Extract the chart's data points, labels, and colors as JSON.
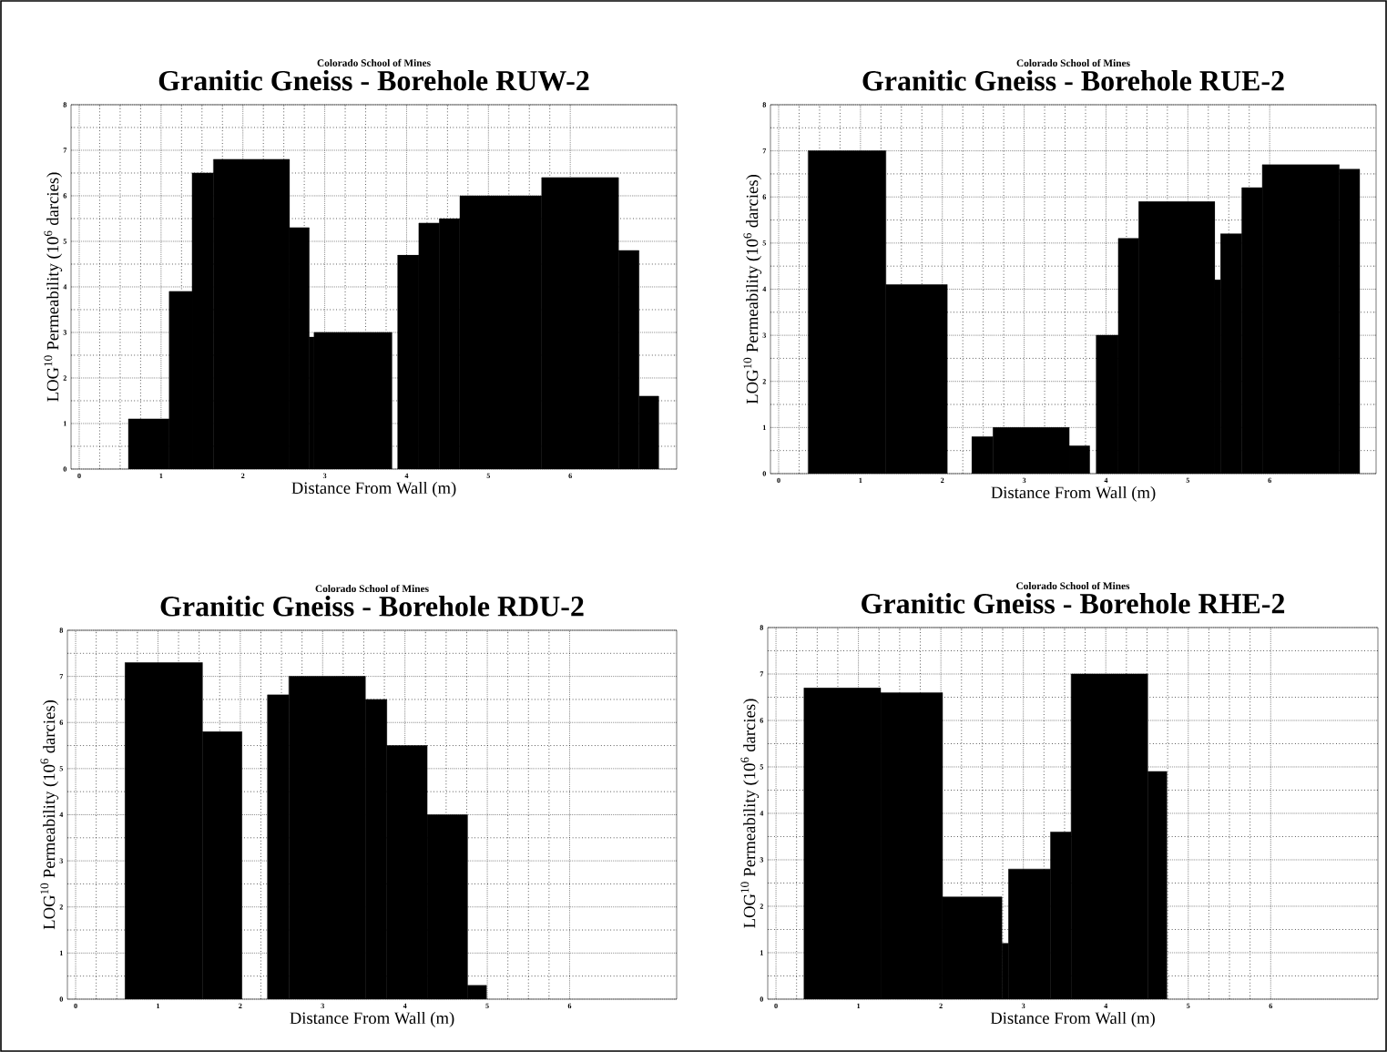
{
  "chart_data": [
    {
      "type": "histogram",
      "subtitle": "Colorado School of Mines",
      "title": "Granitic Gneiss - Borehole RUW-2",
      "xlabel": "Distance From Wall (m)",
      "ylabel": "LOG$^{10}$ Permeability (10$^{6}$ darcies)",
      "bins": [
        0.6,
        1.1,
        1.38,
        1.64,
        2.57,
        2.81,
        2.87,
        3.82,
        3.89,
        4.15,
        4.4,
        4.65,
        5.65,
        6.59,
        6.84,
        7.08
      ],
      "values": [
        1.1,
        3.9,
        6.5,
        6.8,
        5.3,
        2.9,
        3.0,
        null,
        4.7,
        5.4,
        5.5,
        6.0,
        6.4,
        4.8,
        1.6
      ],
      "color": "#000000",
      "xlim": [
        -0.1,
        7.3
      ],
      "ylim": [
        0,
        8
      ],
      "xticks": [
        0,
        1,
        2,
        3,
        4,
        5,
        6
      ],
      "yticks": [
        0,
        1,
        2,
        3,
        4,
        5,
        6,
        7,
        8
      ],
      "grid": true
    },
    {
      "type": "histogram",
      "subtitle": "Colorado School of Mines",
      "title": "Granitic Gneiss - Borehole RUE-2",
      "xlabel": "Distance From Wall (m)",
      "ylabel": "LOG$^{10}$ Permeability (10$^{6}$ darcies)",
      "bins": [
        0.36,
        1.31,
        2.06,
        2.36,
        2.62,
        3.55,
        3.8,
        3.88,
        4.15,
        4.4,
        5.33,
        5.4,
        5.66,
        5.91,
        6.85,
        7.1
      ],
      "values": [
        7.0,
        4.1,
        null,
        0.8,
        1.0,
        0.6,
        null,
        3.0,
        5.1,
        5.9,
        4.2,
        5.2,
        6.2,
        6.7,
        6.6
      ],
      "color": "#000000",
      "xlim": [
        -0.1,
        7.3
      ],
      "ylim": [
        0,
        8
      ],
      "xticks": [
        0,
        1,
        2,
        3,
        4,
        5,
        6
      ],
      "yticks": [
        0,
        1,
        2,
        3,
        4,
        5,
        6,
        7,
        8
      ],
      "grid": true
    },
    {
      "type": "histogram",
      "subtitle": "Colorado School of Mines",
      "title": "Granitic Gneiss - Borehole RDU-2",
      "xlabel": "Distance From Wall (m)",
      "ylabel": "LOG$^{10}$ Permeability (10$^{6}$ darcies)",
      "bins": [
        0.6,
        1.54,
        2.02,
        2.33,
        2.59,
        3.52,
        3.78,
        4.27,
        4.76,
        4.99
      ],
      "values": [
        7.3,
        5.8,
        null,
        6.6,
        7.0,
        6.5,
        5.5,
        4.0,
        0.3
      ],
      "color": "#000000",
      "xlim": [
        -0.1,
        7.3
      ],
      "ylim": [
        0,
        8
      ],
      "xticks": [
        0,
        1,
        2,
        3,
        4,
        5,
        6
      ],
      "yticks": [
        0,
        1,
        2,
        3,
        4,
        5,
        6,
        7,
        8
      ],
      "grid": true
    },
    {
      "type": "histogram",
      "subtitle": "Colorado School of Mines",
      "title": "Granitic Gneiss - Borehole RHE-2",
      "xlabel": "Distance From Wall (m)",
      "ylabel": "LOG$^{10}$ Permeability (10$^{6}$ darcies)",
      "bins": [
        0.34,
        1.27,
        2.02,
        2.74,
        2.82,
        3.33,
        3.58,
        4.51,
        4.74
      ],
      "values": [
        6.7,
        6.6,
        2.2,
        1.2,
        2.8,
        3.6,
        7.0,
        4.9
      ],
      "color": "#000000",
      "xlim": [
        -0.1,
        7.3
      ],
      "ylim": [
        0,
        8
      ],
      "xticks": [
        0,
        1,
        2,
        3,
        4,
        5,
        6
      ],
      "yticks": [
        0,
        1,
        2,
        3,
        4,
        5,
        6,
        7,
        8
      ],
      "grid": true
    }
  ]
}
